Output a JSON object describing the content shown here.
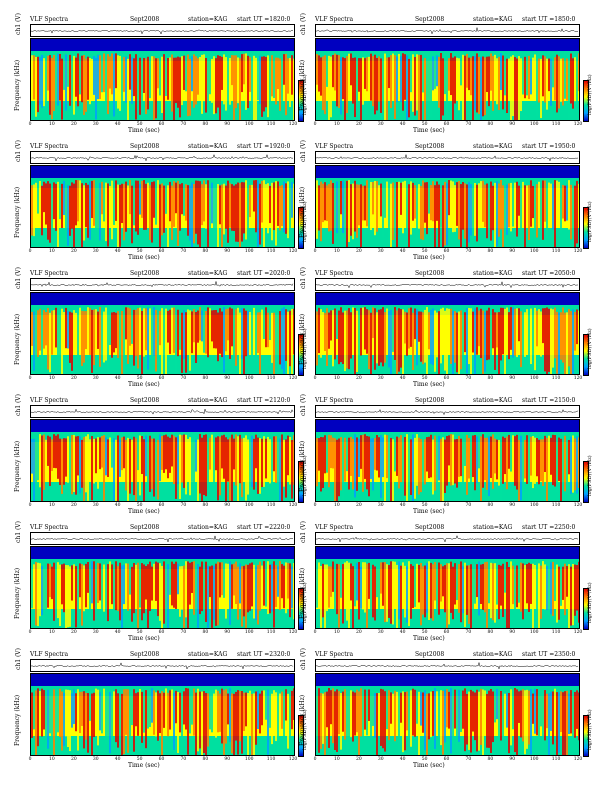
{
  "common": {
    "title": "VLF Spectra",
    "date": "Sept2008",
    "station": "station=KAG",
    "xlabel": "Time (sec)",
    "ylabel": "Frequency (kHz)",
    "chlabel": "ch1 (V)",
    "cbar_label": "log(PSD)(V²/Hz)",
    "xticks": [
      "0",
      "10",
      "20",
      "30",
      "40",
      "50",
      "60",
      "70",
      "80",
      "90",
      "100",
      "110",
      "120"
    ],
    "ch_yticks": [
      "0.20",
      "0.00",
      "-0.20"
    ],
    "freq_yticks": [
      "10",
      "8",
      "6",
      "4",
      "2",
      "0"
    ]
  },
  "panels": [
    {
      "start": "start UT =1820:0"
    },
    {
      "start": "start UT =1850:0"
    },
    {
      "start": "start UT =1920:0"
    },
    {
      "start": "start UT =1950:0"
    },
    {
      "start": "start UT =2020:0"
    },
    {
      "start": "start UT =2050:0"
    },
    {
      "start": "start UT =2120:0"
    },
    {
      "start": "start UT =2150:0"
    },
    {
      "start": "start UT =2220:0"
    },
    {
      "start": "start UT =2250:0"
    },
    {
      "start": "start UT =2320:0"
    },
    {
      "start": "start UT =2350:0"
    }
  ],
  "chart_data": {
    "type": "heatmap",
    "title": "VLF Spectra",
    "xlabel": "Time (sec)",
    "ylabel": "Frequency (kHz)",
    "xlim": [
      0,
      120
    ],
    "ylim": [
      0,
      10
    ],
    "colorbar": "log(PSD)(V²/Hz)",
    "colors": [
      "#0000c0",
      "#00a0ff",
      "#00e0a0",
      "#ffff00",
      "#ff8000",
      "#e00000"
    ]
  }
}
